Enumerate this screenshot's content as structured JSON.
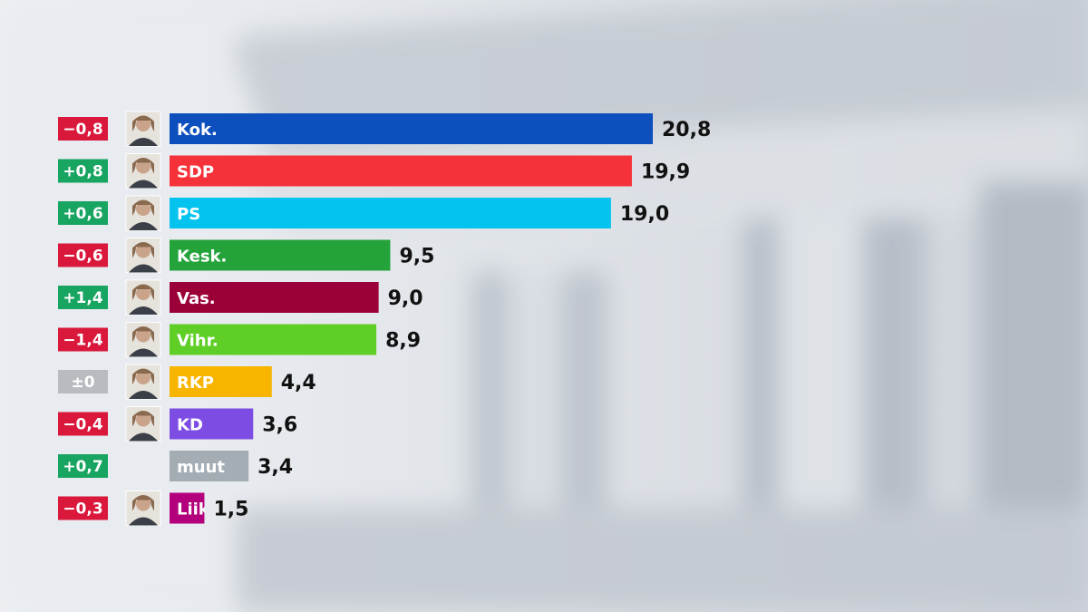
{
  "chart_data": {
    "type": "bar",
    "orientation": "horizontal",
    "title": "",
    "xlabel": "",
    "ylabel": "",
    "xlim": [
      0,
      20.8
    ],
    "grid": false,
    "legend": "none",
    "categories": [
      "Kok.",
      "SDP",
      "PS",
      "Kesk.",
      "Vas.",
      "Vihr.",
      "RKP",
      "KD",
      "muut",
      "Liik"
    ],
    "values": [
      20.8,
      19.9,
      19.0,
      9.5,
      9.0,
      8.9,
      4.4,
      3.6,
      3.4,
      1.5
    ],
    "value_labels": [
      "20,8",
      "19,9",
      "19,0",
      "9,5",
      "9,0",
      "8,9",
      "4,4",
      "3,6",
      "3,4",
      "1,5"
    ],
    "changes": [
      "−0,8",
      "+0,8",
      "+0,6",
      "−0,6",
      "+1,4",
      "−1,4",
      "±0",
      "−0,4",
      "+0,7",
      "−0,3"
    ],
    "change_values": [
      -0.8,
      0.8,
      0.6,
      -0.6,
      1.4,
      -1.4,
      0,
      -0.4,
      0.7,
      -0.3
    ],
    "bar_colors": [
      "#0d4fbd",
      "#f5323a",
      "#04c3ef",
      "#23a339",
      "#9b0039",
      "#5fcf27",
      "#f7b500",
      "#7d4de3",
      "#a3adb3",
      "#b3007c"
    ],
    "change_colors": {
      "negative": "#d9183b",
      "positive": "#18a461",
      "neutral": "#b8bcc0"
    },
    "portraits": [
      "person-portrait",
      "person-portrait",
      "person-portrait",
      "person-portrait",
      "person-portrait",
      "person-portrait",
      "person-portrait",
      "person-portrait",
      null,
      "person-portrait"
    ]
  }
}
